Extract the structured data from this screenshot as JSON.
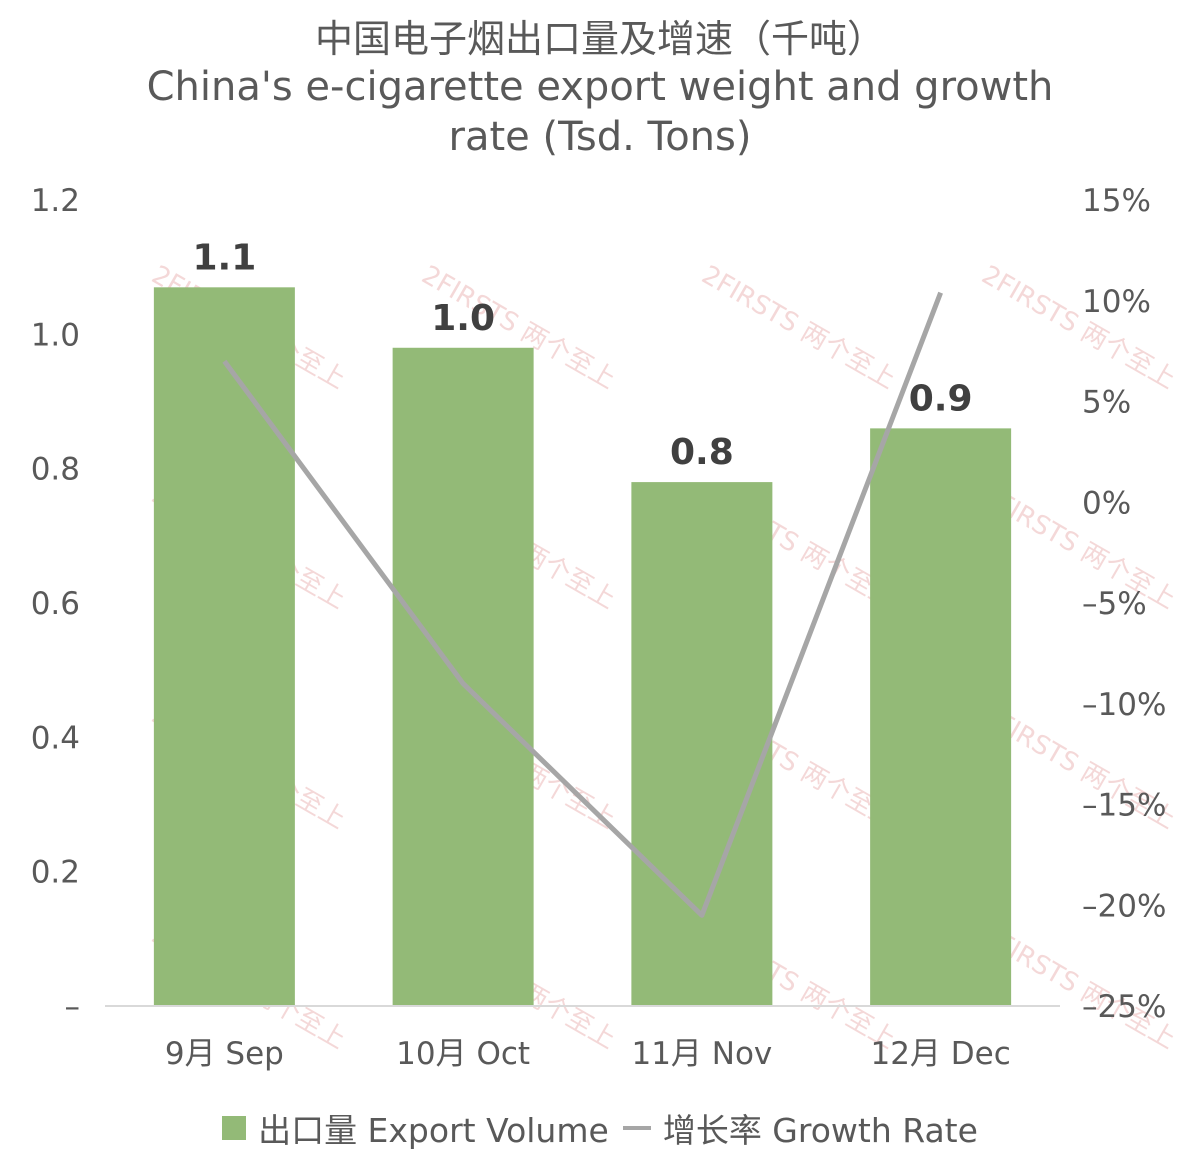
{
  "chart_data": {
    "type": "bar",
    "title": "中国电子烟出口量及增速（千吨）",
    "subtitle": "China's e-cigarette export weight and growth rate (Tsd. Tons)",
    "categories": [
      "9月 Sep",
      "10月 Oct",
      "11月 Nov",
      "12月 Dec"
    ],
    "series": [
      {
        "name": "出口量 Export Volume",
        "type": "bar",
        "axis": "left",
        "color": "#93BA77",
        "values": [
          1.07,
          0.98,
          0.78,
          0.86
        ],
        "labels": [
          "1.1",
          "1.0",
          "0.8",
          "0.9"
        ]
      },
      {
        "name": "增长率 Growth Rate",
        "type": "line",
        "axis": "right",
        "color": "#A6A6A6",
        "values": [
          0.07,
          -0.09,
          -0.205,
          0.104
        ]
      }
    ],
    "y_left": {
      "ylim": [
        0,
        1.2
      ],
      "ticks": [
        0,
        0.2,
        0.4,
        0.6,
        0.8,
        1.0,
        1.2
      ],
      "tick_labels": [
        "–",
        "0.2",
        "0.4",
        "0.6",
        "0.8",
        "1.0",
        "1.2"
      ]
    },
    "y_right": {
      "ylim": [
        -0.25,
        0.15
      ],
      "ticks": [
        -0.25,
        -0.2,
        -0.15,
        -0.1,
        -0.05,
        0,
        0.05,
        0.1,
        0.15
      ],
      "tick_labels": [
        "–25%",
        "–20%",
        "–15%",
        "–10%",
        "–5%",
        "0%",
        "5%",
        "10%",
        "15%"
      ]
    },
    "grid": false,
    "legend_position": "bottom"
  },
  "watermark": "2FIRSTS 两个至上"
}
